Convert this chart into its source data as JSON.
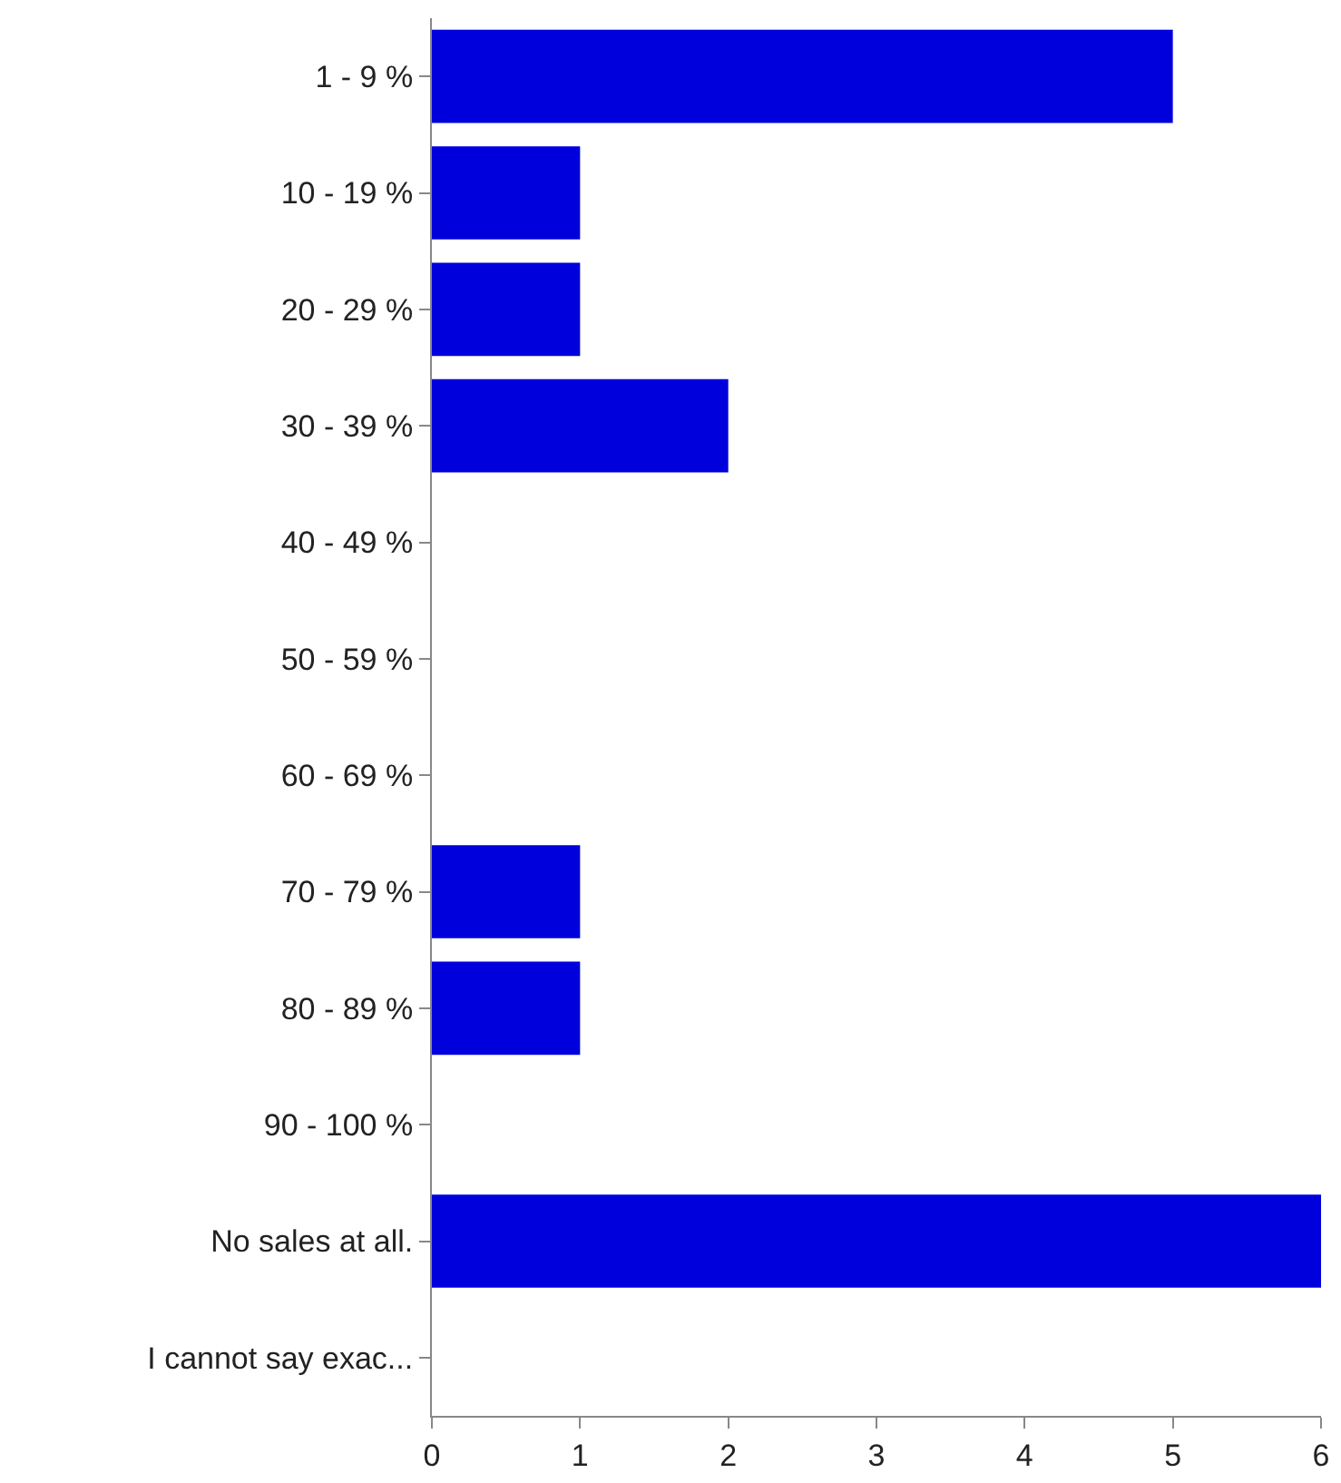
{
  "chart_data": {
    "type": "bar",
    "orientation": "horizontal",
    "categories": [
      "1 - 9 %",
      "10 - 19 %",
      "20 - 29 %",
      "30 - 39 %",
      "40 - 49 %",
      "50 - 59 %",
      "60 - 69 %",
      "70 - 79 %",
      "80 - 89 %",
      "90 - 100 %",
      "No sales at all.",
      "I cannot say exac..."
    ],
    "values": [
      5,
      1,
      1,
      2,
      0,
      0,
      0,
      1,
      1,
      0,
      6,
      0
    ],
    "color": "#0000dd",
    "xlim": [
      0,
      6
    ],
    "xticks": [
      0,
      1,
      2,
      3,
      4,
      5,
      6
    ]
  }
}
